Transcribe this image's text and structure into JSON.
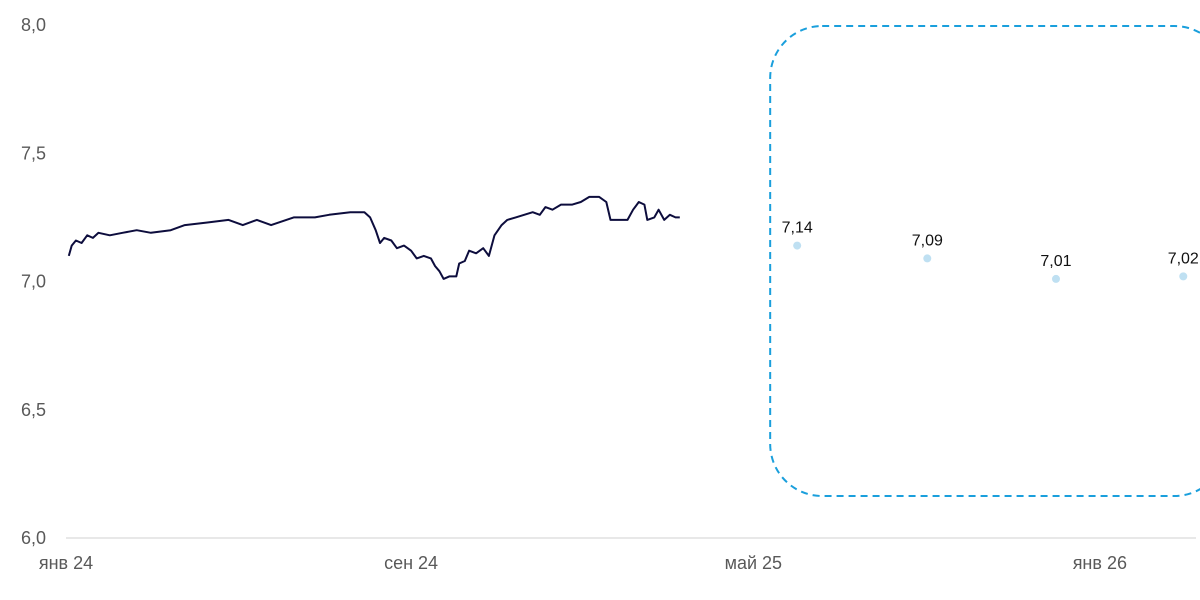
{
  "chart_data": {
    "type": "line",
    "ylim": [
      6.0,
      8.0
    ],
    "xlim": [
      "2024-01-01",
      "2026-03-10"
    ],
    "y_ticks": [
      "6,0",
      "6,5",
      "7,0",
      "7,5",
      "8,0"
    ],
    "y_tick_values": [
      6.0,
      6.5,
      7.0,
      7.5,
      8.0
    ],
    "x_ticks": [
      {
        "label": "янв 24",
        "date": "2024-01-01"
      },
      {
        "label": "сен 24",
        "date": "2024-09-01"
      },
      {
        "label": "май 25",
        "date": "2025-05-01"
      },
      {
        "label": "янв 26",
        "date": "2026-01-01"
      }
    ],
    "grid": false,
    "series": [
      {
        "color": "#0d0d3d",
        "points": [
          [
            "2024-01-03",
            7.1
          ],
          [
            "2024-01-05",
            7.14
          ],
          [
            "2024-01-08",
            7.16
          ],
          [
            "2024-01-12",
            7.15
          ],
          [
            "2024-01-16",
            7.18
          ],
          [
            "2024-01-20",
            7.17
          ],
          [
            "2024-01-24",
            7.19
          ],
          [
            "2024-02-01",
            7.18
          ],
          [
            "2024-02-10",
            7.19
          ],
          [
            "2024-02-20",
            7.2
          ],
          [
            "2024-03-01",
            7.19
          ],
          [
            "2024-03-15",
            7.2
          ],
          [
            "2024-03-25",
            7.22
          ],
          [
            "2024-04-10",
            7.23
          ],
          [
            "2024-04-25",
            7.24
          ],
          [
            "2024-05-05",
            7.22
          ],
          [
            "2024-05-15",
            7.24
          ],
          [
            "2024-05-25",
            7.22
          ],
          [
            "2024-06-10",
            7.25
          ],
          [
            "2024-06-25",
            7.25
          ],
          [
            "2024-07-05",
            7.26
          ],
          [
            "2024-07-20",
            7.27
          ],
          [
            "2024-07-30",
            7.27
          ],
          [
            "2024-08-03",
            7.25
          ],
          [
            "2024-08-07",
            7.2
          ],
          [
            "2024-08-10",
            7.15
          ],
          [
            "2024-08-13",
            7.17
          ],
          [
            "2024-08-18",
            7.16
          ],
          [
            "2024-08-22",
            7.13
          ],
          [
            "2024-08-27",
            7.14
          ],
          [
            "2024-09-01",
            7.12
          ],
          [
            "2024-09-05",
            7.09
          ],
          [
            "2024-09-10",
            7.1
          ],
          [
            "2024-09-15",
            7.09
          ],
          [
            "2024-09-18",
            7.06
          ],
          [
            "2024-09-21",
            7.04
          ],
          [
            "2024-09-24",
            7.01
          ],
          [
            "2024-09-28",
            7.02
          ],
          [
            "2024-10-03",
            7.02
          ],
          [
            "2024-10-05",
            7.07
          ],
          [
            "2024-10-09",
            7.08
          ],
          [
            "2024-10-12",
            7.12
          ],
          [
            "2024-10-17",
            7.11
          ],
          [
            "2024-10-22",
            7.13
          ],
          [
            "2024-10-26",
            7.1
          ],
          [
            "2024-10-30",
            7.18
          ],
          [
            "2024-11-04",
            7.22
          ],
          [
            "2024-11-08",
            7.24
          ],
          [
            "2024-11-14",
            7.25
          ],
          [
            "2024-11-20",
            7.26
          ],
          [
            "2024-11-26",
            7.27
          ],
          [
            "2024-12-01",
            7.26
          ],
          [
            "2024-12-05",
            7.29
          ],
          [
            "2024-12-10",
            7.28
          ],
          [
            "2024-12-16",
            7.3
          ],
          [
            "2024-12-24",
            7.3
          ],
          [
            "2024-12-30",
            7.31
          ],
          [
            "2025-01-05",
            7.33
          ],
          [
            "2025-01-12",
            7.33
          ],
          [
            "2025-01-17",
            7.31
          ],
          [
            "2025-01-20",
            7.24
          ],
          [
            "2025-01-25",
            7.24
          ],
          [
            "2025-02-01",
            7.24
          ],
          [
            "2025-02-05",
            7.28
          ],
          [
            "2025-02-09",
            7.31
          ],
          [
            "2025-02-13",
            7.3
          ],
          [
            "2025-02-15",
            7.24
          ],
          [
            "2025-02-20",
            7.25
          ],
          [
            "2025-02-23",
            7.28
          ],
          [
            "2025-02-27",
            7.24
          ],
          [
            "2025-03-03",
            7.26
          ],
          [
            "2025-03-07",
            7.25
          ],
          [
            "2025-03-10",
            7.25
          ]
        ]
      },
      {
        "color": "#bfe0f2",
        "points": [
          [
            "2025-06-01",
            7.14
          ],
          [
            "2025-09-01",
            7.09
          ],
          [
            "2025-12-01",
            7.01
          ],
          [
            "2026-03-01",
            7.02
          ]
        ],
        "labels": [
          "7,14",
          "7,09",
          "7,01",
          "7,02"
        ]
      }
    ],
    "colors": {
      "axis": "#d0d0d0",
      "highlight": "#1a9fdc",
      "tick_text": "#595959"
    }
  }
}
